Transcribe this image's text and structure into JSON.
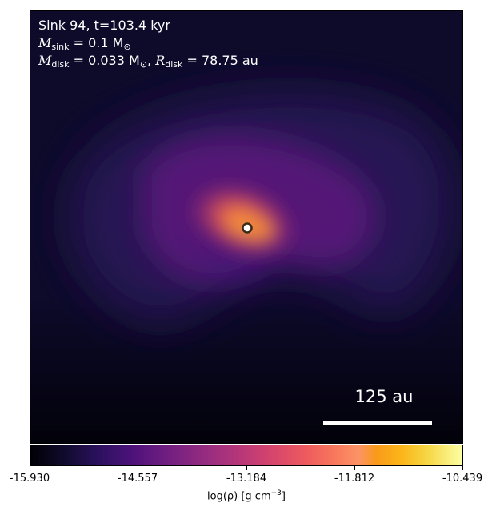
{
  "annotation": {
    "title": "Sink 94, t=103.4 kyr",
    "sink_mass": {
      "symbol": "M",
      "subscript": "sink",
      "value": " = 0.1 M",
      "unit_sub": "⊙"
    },
    "disk": {
      "symbol": "M",
      "subscript": "disk",
      "value": " = 0.033 M",
      "unit_sub": "⊙",
      "sep": ", ",
      "r_symbol": "R",
      "r_subscript": "disk",
      "r_value": " = 78.75 au"
    }
  },
  "scale_bar": {
    "label": "125 au"
  },
  "colorbar": {
    "ticks": [
      "-15.930",
      "-14.557",
      "-13.184",
      "-11.812",
      "-10.439"
    ],
    "label_prefix": "log(ρ) [g cm",
    "label_exp": "−3",
    "label_suffix": "]",
    "colormap": "inferno"
  },
  "colors": {
    "background_dark": "#07061a",
    "core": "#f08a3a",
    "sink_marker": "#ffffff"
  }
}
